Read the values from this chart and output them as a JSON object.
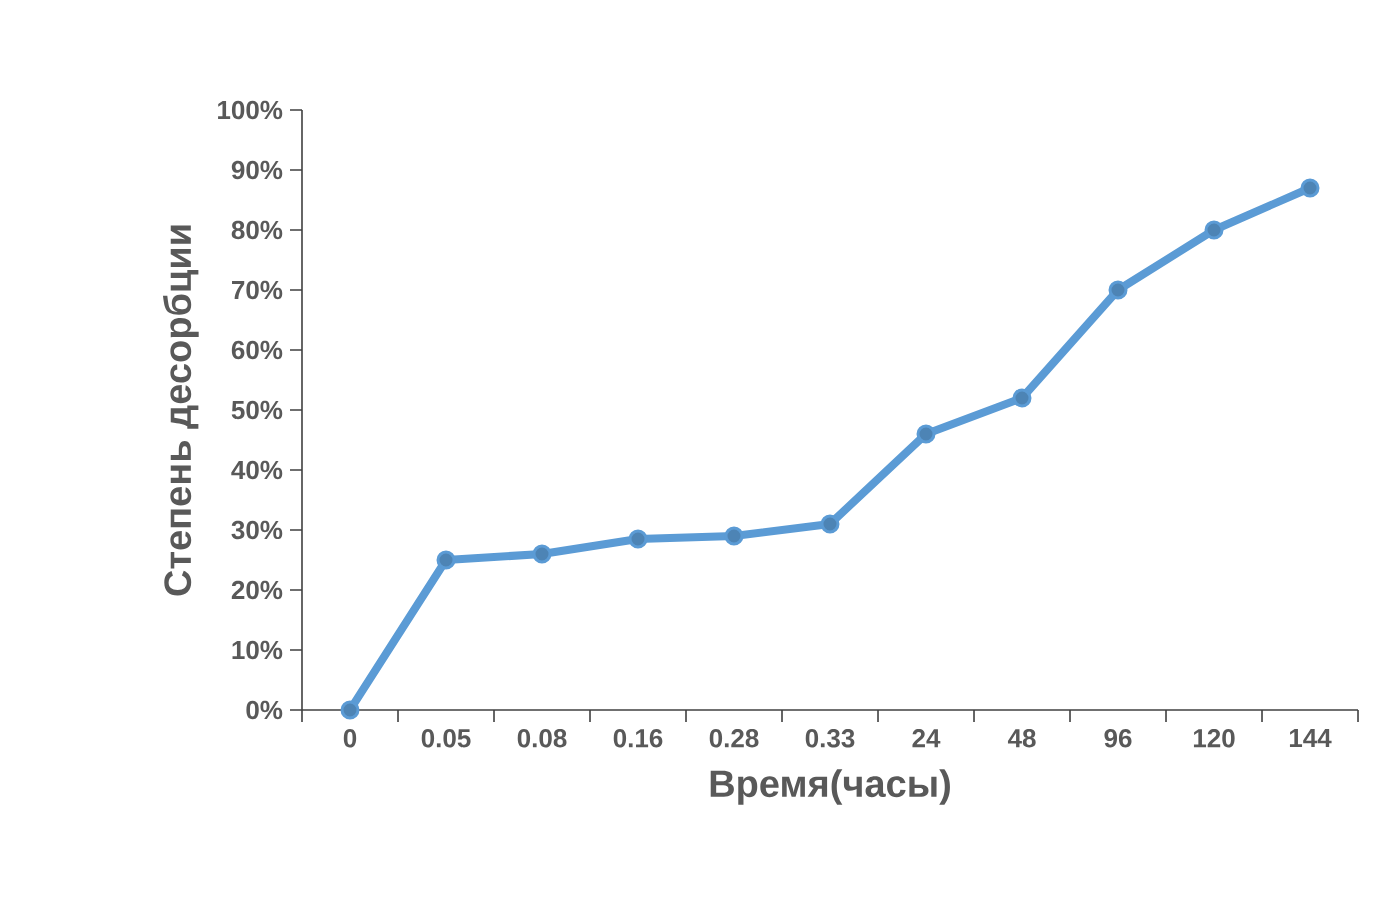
{
  "chart_data": {
    "type": "line",
    "xlabel": "Время(часы)",
    "ylabel": "Степень десорбции",
    "categories": [
      "0",
      "0.05",
      "0.08",
      "0.16",
      "0.28",
      "0.33",
      "24",
      "48",
      "96",
      "120",
      "144"
    ],
    "series": [
      {
        "color": "#5b9bd5",
        "values": [
          0,
          25,
          26,
          28.5,
          29,
          31,
          46,
          52,
          70,
          80,
          87
        ]
      }
    ],
    "ylim": [
      0,
      100
    ],
    "yticks": [
      {
        "value": 0,
        "label": "0%"
      },
      {
        "value": 10,
        "label": "10%"
      },
      {
        "value": 20,
        "label": "20%"
      },
      {
        "value": 30,
        "label": "30%"
      },
      {
        "value": 40,
        "label": "40%"
      },
      {
        "value": 50,
        "label": "50%"
      },
      {
        "value": 60,
        "label": "60%"
      },
      {
        "value": 70,
        "label": "70%"
      },
      {
        "value": 80,
        "label": "80%"
      },
      {
        "value": 90,
        "label": "90%"
      },
      {
        "value": 100,
        "label": "100%"
      }
    ],
    "marker": "circle",
    "line_style": "solid",
    "grid": false
  }
}
